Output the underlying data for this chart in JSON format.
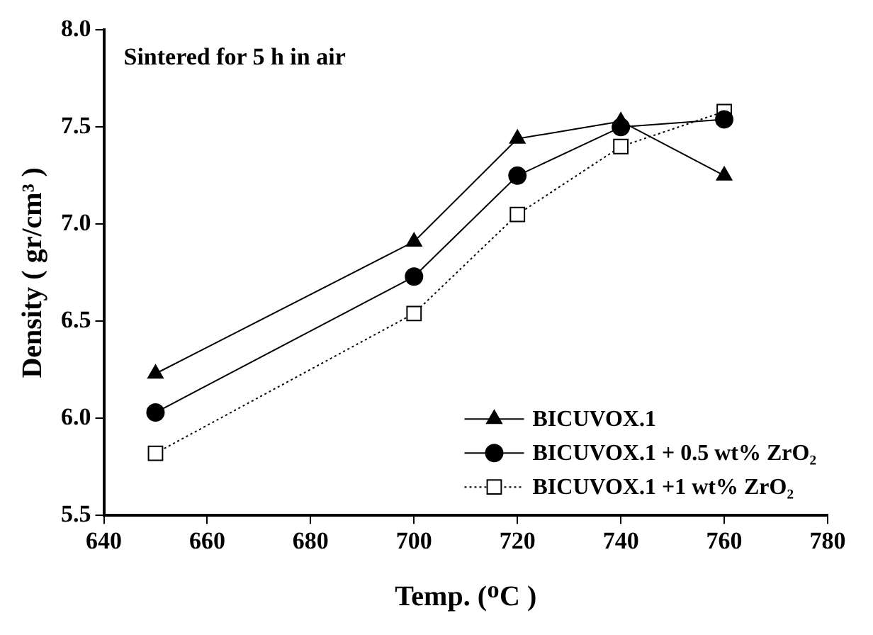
{
  "chart_data": {
    "type": "line",
    "xlabel": "Temp. (ᴼC )",
    "ylabel": "Density ( gr/cm³ )",
    "annotations": [
      "Sintered for 5 h in air"
    ],
    "x": [
      650,
      700,
      720,
      740,
      760
    ],
    "series": [
      {
        "name": "BICUVOX.1",
        "color": "#000000",
        "marker": "triangle",
        "line_style": "solid",
        "values": [
          6.23,
          6.91,
          7.44,
          7.53,
          7.25
        ]
      },
      {
        "name": "BICUVOX.1 + 0.5 wt% ZrO₂",
        "color": "#000000",
        "marker": "circle",
        "line_style": "solid",
        "values": [
          6.03,
          6.73,
          7.25,
          7.5,
          7.54
        ]
      },
      {
        "name": "BICUVOX.1 +1 wt% ZrO₂",
        "color": "#000000",
        "marker": "square",
        "line_style": "dotted",
        "values": [
          5.82,
          6.54,
          7.05,
          7.4,
          7.58
        ]
      }
    ],
    "xlim": [
      640,
      780
    ],
    "xticks": [
      640,
      660,
      680,
      700,
      720,
      740,
      760,
      780
    ],
    "ylim": [
      5.5,
      8
    ],
    "yticks": [
      {
        "value": 5.5,
        "label": "5.5"
      },
      {
        "value": 6,
        "label": "6.0"
      },
      {
        "value": 6.5,
        "label": "6.5"
      },
      {
        "value": 7,
        "label": "7.0"
      },
      {
        "value": 7.5,
        "label": "7.5"
      },
      {
        "value": 8,
        "label": "8.0"
      }
    ],
    "legend": "bottom right",
    "grid": false
  }
}
